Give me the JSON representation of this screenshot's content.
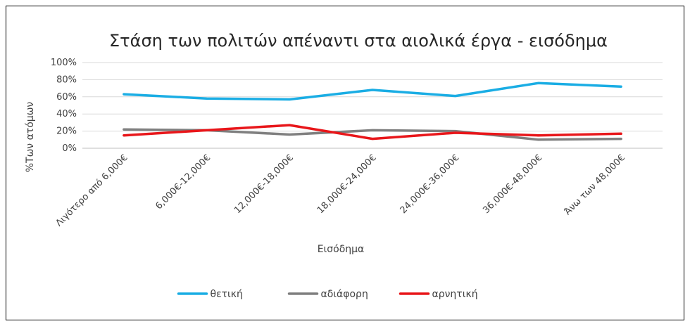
{
  "chart_data": {
    "type": "line",
    "title": "Στάση των πολιτών απέναντι στα αιολικά έργα - εισόδημα",
    "xlabel": "Εισόδημα",
    "ylabel": "%Των ατόμων",
    "categories": [
      "Λιγότερο από 6,000€",
      "6,000€-12,000€",
      "12,000€-18,000€",
      "18,000€-24,000€",
      "24,000€-36,000€",
      "36,000€-48,000€",
      "Άνω των 48,000€"
    ],
    "ylim": [
      0,
      100
    ],
    "yticks": [
      "0%",
      "20%",
      "40%",
      "60%",
      "80%",
      "100%"
    ],
    "grid": true,
    "legend_position": "bottom",
    "series": [
      {
        "name": "θετική",
        "color": "#1AADE4",
        "values": [
          63,
          58,
          57,
          68,
          61,
          76,
          72
        ]
      },
      {
        "name": "αδιάφορη",
        "color": "#7F7F7F",
        "values": [
          22,
          21,
          16,
          21,
          20,
          10,
          11
        ]
      },
      {
        "name": "αρνητική",
        "color": "#E8161A",
        "values": [
          15,
          21,
          27,
          11,
          18,
          15,
          17
        ]
      }
    ]
  }
}
